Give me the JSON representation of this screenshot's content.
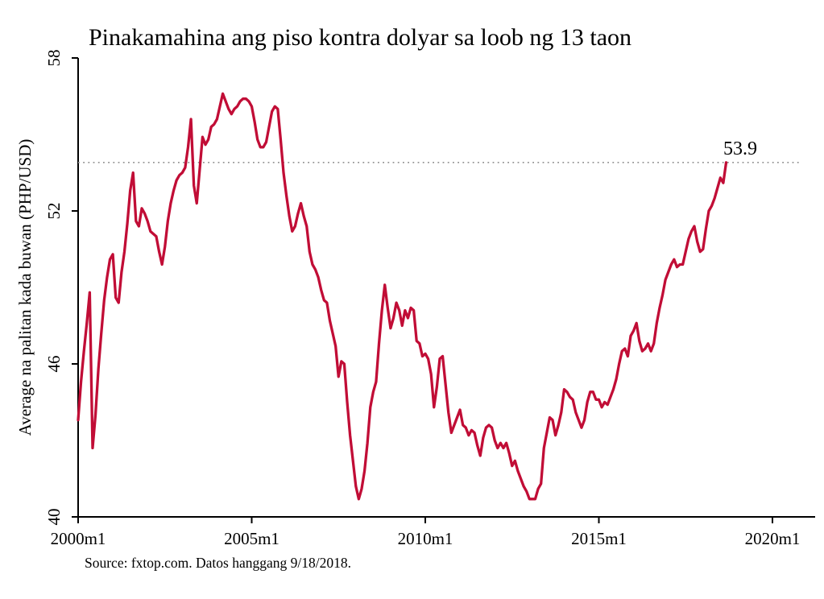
{
  "title": "Pinakamahina ang piso kontra dolyar sa loob ng 13 taon",
  "source_note": "Source: fxtop.com. Datos hanggang 9/18/2018.",
  "annotation": {
    "label": "53.9",
    "value": 53.9
  },
  "colors": {
    "line": "#c10d36",
    "annotation": "#c10d36",
    "refline": "#8f8f8f",
    "axis": "#000000",
    "background": "#ffffff"
  },
  "chart_data": {
    "type": "line",
    "title": "Pinakamahina ang piso kontra dolyar sa loob ng 13 taon",
    "xlabel": "",
    "ylabel": "Average na palitan kada buwan (PHP/USD)",
    "ylim": [
      40,
      58
    ],
    "xlim_years": [
      2000,
      21.25
    ],
    "y_ticks": [
      40,
      46,
      52,
      58
    ],
    "x_ticks": [
      {
        "label": "2000m1",
        "year": 2000
      },
      {
        "label": "2005m1",
        "year": 2005
      },
      {
        "label": "2010m1",
        "year": 2010
      },
      {
        "label": "2015m1",
        "year": 2015
      },
      {
        "label": "2020m1",
        "year": 2020
      }
    ],
    "grid": false,
    "legend": "none",
    "refline_value": 53.9,
    "series": [
      {
        "name": "PHP/USD average na palitan kada buwan",
        "start": "2000m1",
        "end": "2018m9",
        "frequency": "monthly",
        "values": [
          43.8,
          45.3,
          46.5,
          47.6,
          48.8,
          42.7,
          44.0,
          45.8,
          47.2,
          48.5,
          49.4,
          50.1,
          50.3,
          48.6,
          48.4,
          49.6,
          50.4,
          51.5,
          52.8,
          53.5,
          51.6,
          51.4,
          52.1,
          51.9,
          51.6,
          51.2,
          51.1,
          51.0,
          50.4,
          49.9,
          50.6,
          51.6,
          52.3,
          52.8,
          53.2,
          53.4,
          53.5,
          53.7,
          54.5,
          55.6,
          53.0,
          52.3,
          53.6,
          54.9,
          54.6,
          54.8,
          55.3,
          55.4,
          55.6,
          56.1,
          56.6,
          56.3,
          56.0,
          55.8,
          56.0,
          56.1,
          56.3,
          56.4,
          56.4,
          56.3,
          56.1,
          55.5,
          54.8,
          54.5,
          54.5,
          54.7,
          55.3,
          55.9,
          56.1,
          56.0,
          54.8,
          53.5,
          52.6,
          51.8,
          51.2,
          51.4,
          51.9,
          52.3,
          51.8,
          51.4,
          50.4,
          49.9,
          49.7,
          49.4,
          48.9,
          48.5,
          48.4,
          47.7,
          47.2,
          46.7,
          45.5,
          46.1,
          46.0,
          44.5,
          43.2,
          42.2,
          41.2,
          40.7,
          41.1,
          41.8,
          42.9,
          44.3,
          44.9,
          45.3,
          46.8,
          48.1,
          49.1,
          48.2,
          47.4,
          47.8,
          48.4,
          48.1,
          47.5,
          48.1,
          47.8,
          48.2,
          48.1,
          46.9,
          46.8,
          46.3,
          46.4,
          46.2,
          45.6,
          44.3,
          45.1,
          46.2,
          46.3,
          45.2,
          44.1,
          43.3,
          43.6,
          43.9,
          44.2,
          43.6,
          43.5,
          43.2,
          43.4,
          43.3,
          42.8,
          42.4,
          43.1,
          43.5,
          43.6,
          43.5,
          43.0,
          42.7,
          42.9,
          42.7,
          42.9,
          42.5,
          42.0,
          42.2,
          41.8,
          41.5,
          41.2,
          41.0,
          40.7,
          40.7,
          40.7,
          41.1,
          41.3,
          42.7,
          43.3,
          43.9,
          43.8,
          43.2,
          43.6,
          44.1,
          45.0,
          44.9,
          44.7,
          44.6,
          44.1,
          43.8,
          43.5,
          43.8,
          44.5,
          44.9,
          44.9,
          44.6,
          44.6,
          44.3,
          44.5,
          44.4,
          44.7,
          45.0,
          45.4,
          46.0,
          46.5,
          46.6,
          46.3,
          47.1,
          47.3,
          47.6,
          46.9,
          46.5,
          46.6,
          46.8,
          46.5,
          46.8,
          47.6,
          48.2,
          48.7,
          49.3,
          49.6,
          49.9,
          50.1,
          49.8,
          49.9,
          49.9,
          50.4,
          50.9,
          51.2,
          51.4,
          50.8,
          50.4,
          50.5,
          51.3,
          52.0,
          52.2,
          52.5,
          52.9,
          53.3,
          53.1,
          53.9
        ]
      }
    ]
  }
}
